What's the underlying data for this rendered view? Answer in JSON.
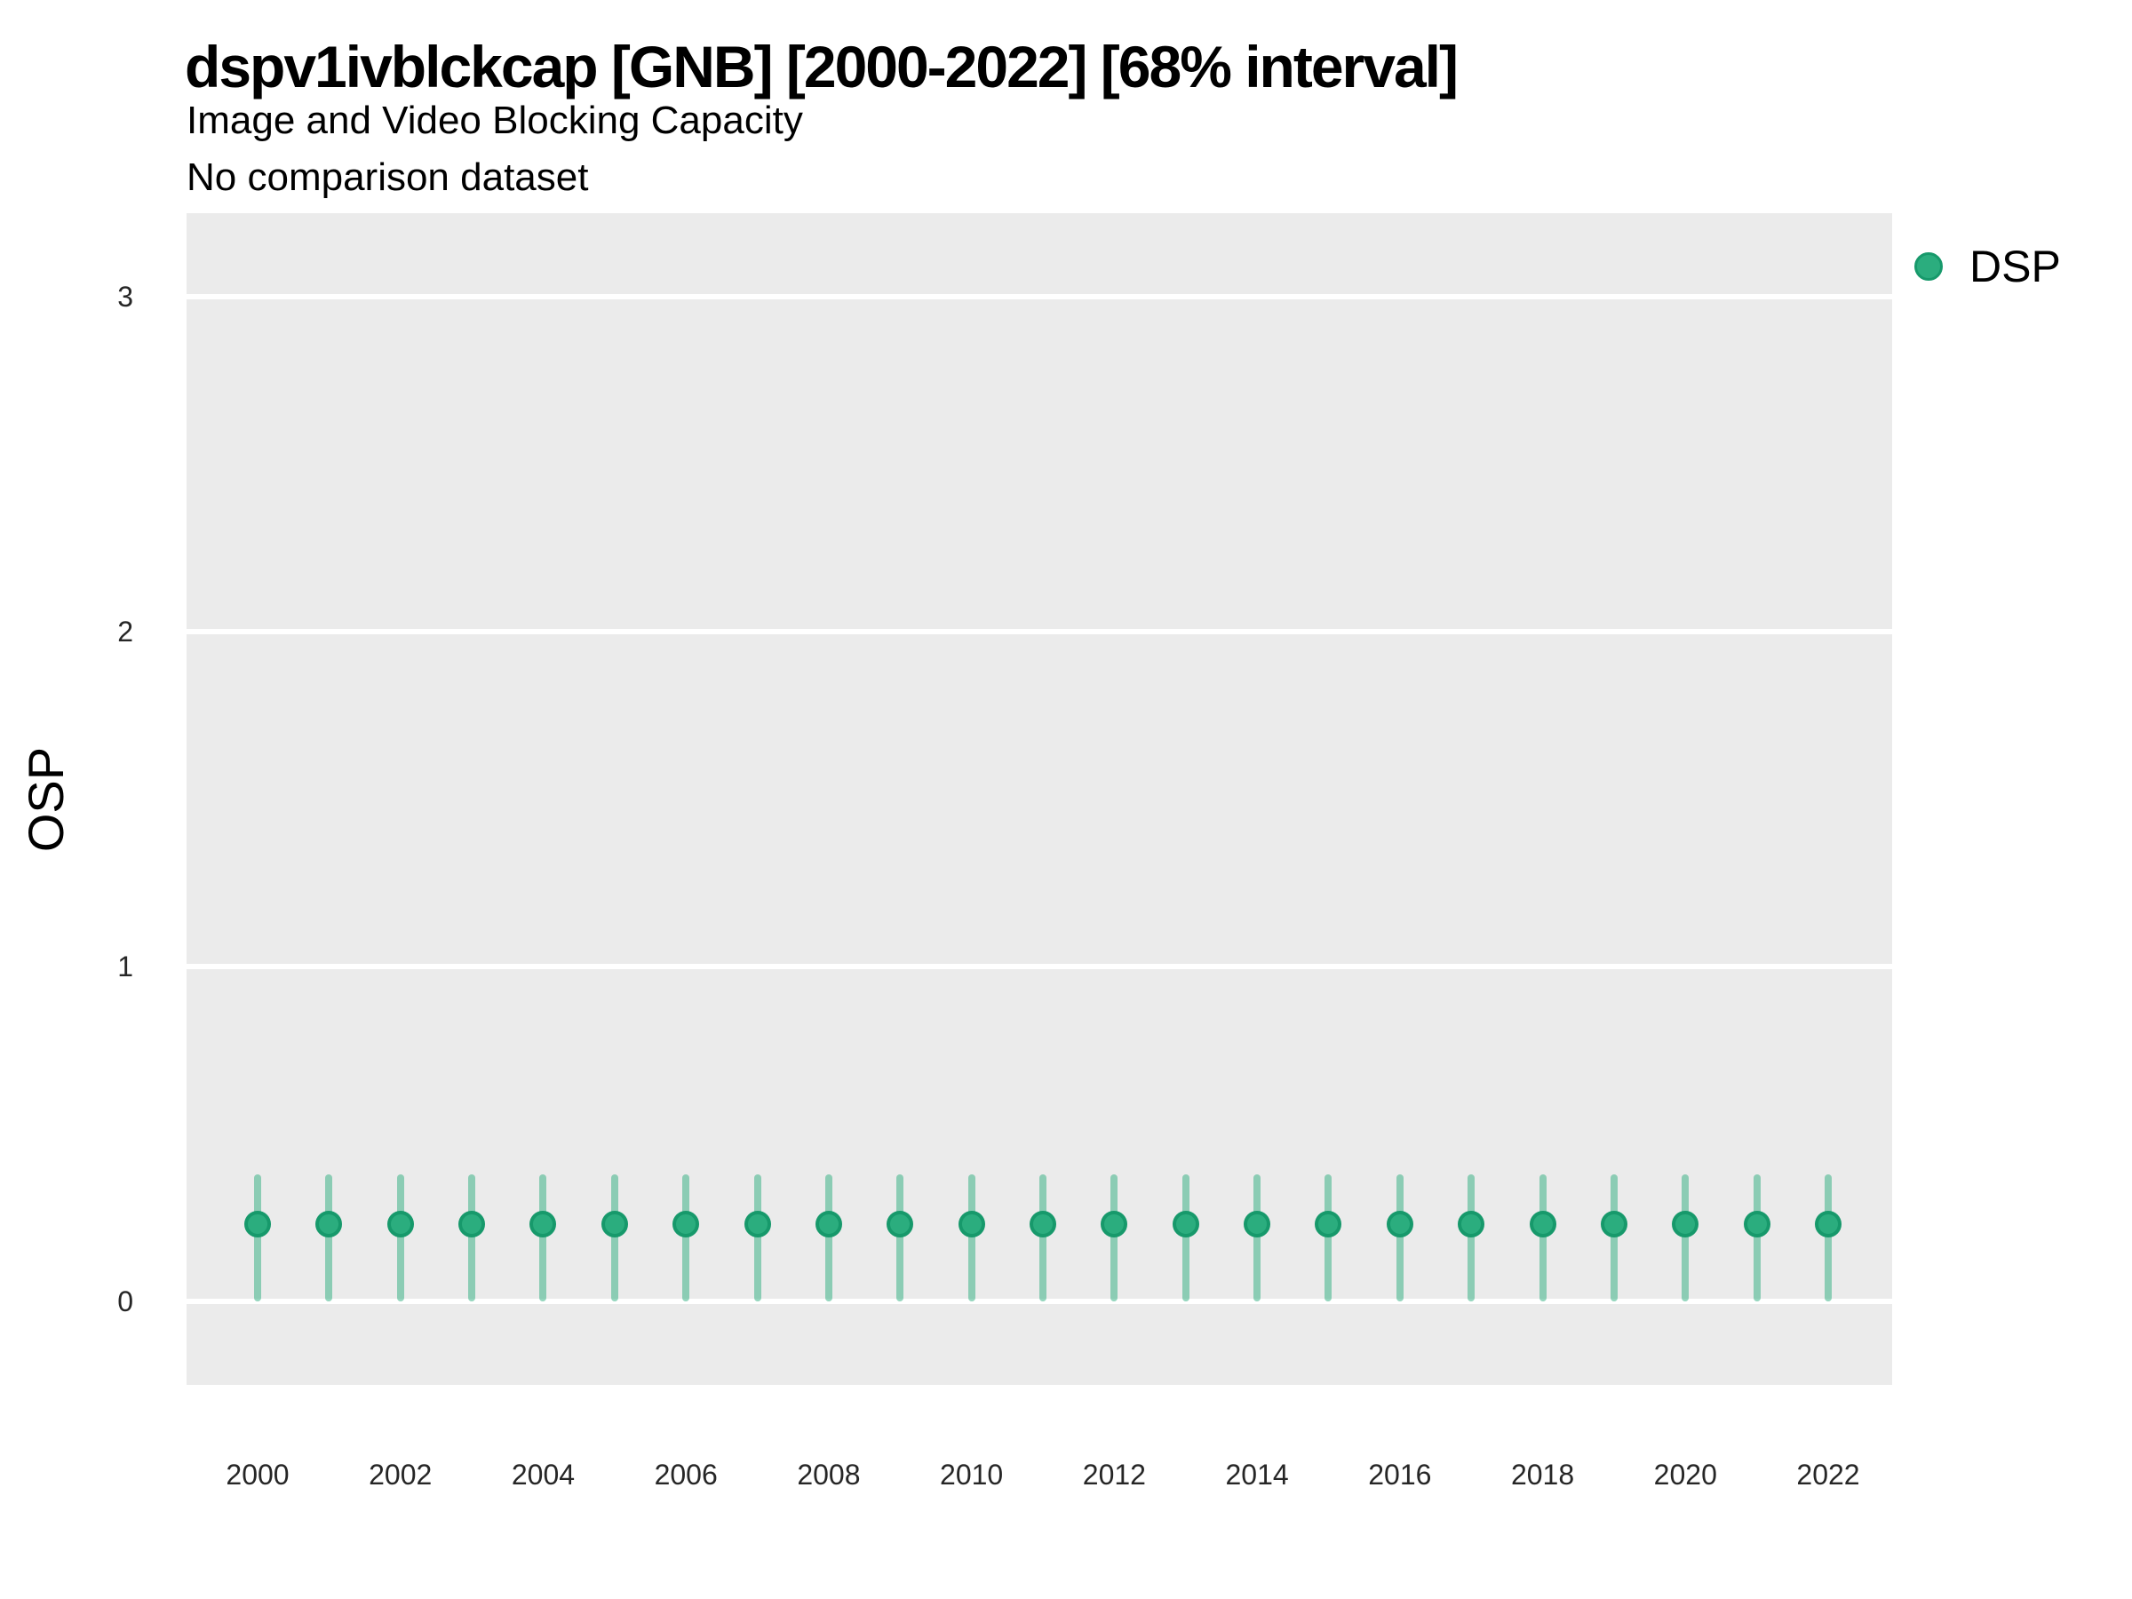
{
  "header": {
    "title": "dspv1ivblckcap [GNB] [2000-2022] [68% interval]",
    "subtitle": "Image and Video Blocking Capacity",
    "note": "No comparison dataset"
  },
  "y_axis": {
    "title": "OSP",
    "tick_labels": [
      "0",
      "1",
      "2",
      "3"
    ]
  },
  "x_axis": {
    "tick_labels": [
      "2000",
      "2002",
      "2004",
      "2006",
      "2008",
      "2010",
      "2012",
      "2014",
      "2016",
      "2018",
      "2020",
      "2022"
    ]
  },
  "legend": {
    "label": "DSP"
  },
  "colors": {
    "point": "#2BAD7E",
    "point_border": "#17996B",
    "interval": "rgba(43,173,126,0.5)",
    "panel_bg": "#EBEBEB",
    "gridline": "#FFFFFF"
  },
  "chart_data": {
    "type": "scatter",
    "title": "dspv1ivblckcap [GNB] [2000-2022] [68% interval]",
    "subtitle": "Image and Video Blocking Capacity",
    "note": "No comparison dataset",
    "interval": "68%",
    "ylabel": "OSP",
    "xlabel": "",
    "ylim": [
      -0.25,
      3.25
    ],
    "y_ticks": [
      0,
      1,
      2,
      3
    ],
    "x_ticks": [
      2000,
      2002,
      2004,
      2006,
      2008,
      2010,
      2012,
      2014,
      2016,
      2018,
      2020,
      2022
    ],
    "grid": "major-horizontal-only",
    "legend_position": "right",
    "series": [
      {
        "name": "DSP",
        "color": "#2BAD7E",
        "x": [
          2000,
          2001,
          2002,
          2003,
          2004,
          2005,
          2006,
          2007,
          2008,
          2009,
          2010,
          2011,
          2012,
          2013,
          2014,
          2015,
          2016,
          2017,
          2018,
          2019,
          2020,
          2021,
          2022
        ],
        "y": [
          0.23,
          0.23,
          0.23,
          0.23,
          0.23,
          0.23,
          0.23,
          0.23,
          0.23,
          0.23,
          0.23,
          0.23,
          0.23,
          0.23,
          0.23,
          0.23,
          0.23,
          0.23,
          0.23,
          0.23,
          0.23,
          0.23,
          0.23
        ],
        "y_lo": [
          0.0,
          0.0,
          0.0,
          0.0,
          0.0,
          0.0,
          0.0,
          0.0,
          0.0,
          0.0,
          0.0,
          0.0,
          0.0,
          0.0,
          0.0,
          0.0,
          0.0,
          0.0,
          0.0,
          0.0,
          0.0,
          0.0,
          0.0
        ],
        "y_hi": [
          0.38,
          0.38,
          0.38,
          0.38,
          0.38,
          0.38,
          0.38,
          0.38,
          0.38,
          0.38,
          0.38,
          0.38,
          0.38,
          0.38,
          0.38,
          0.38,
          0.38,
          0.38,
          0.38,
          0.38,
          0.38,
          0.38,
          0.38
        ]
      }
    ]
  }
}
